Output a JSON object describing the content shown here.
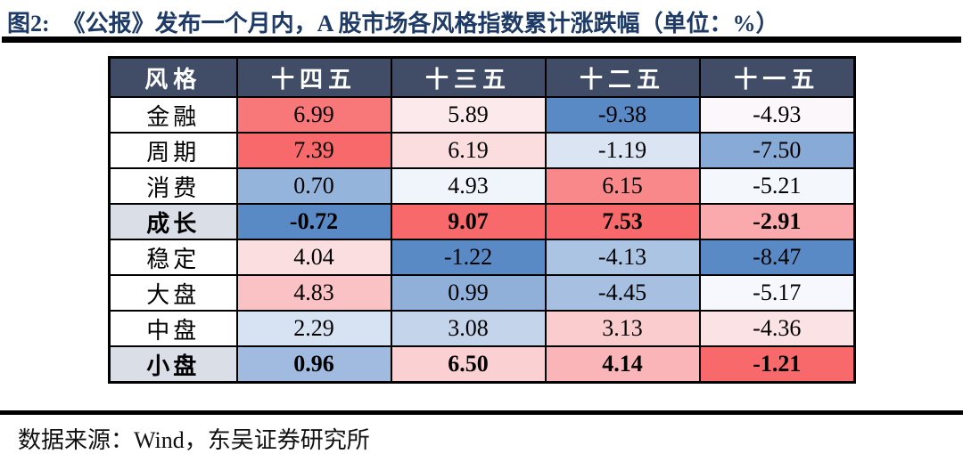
{
  "header": {
    "figure_label": "图2:",
    "title": "《公报》发布一个月内，A 股市场各风格指数累计涨跌幅（单位：%）",
    "title_color": "#1E3A66"
  },
  "table": {
    "columns": [
      "风格",
      "十四五",
      "十三五",
      "十二五",
      "十一五"
    ],
    "header_bg": "#414D66",
    "bold_label_bg": "#D9DEE7",
    "scale": {
      "min_color": "#5A8AC6",
      "mid_color": "#FCFCFF",
      "max_color": "#F8696B",
      "rule": "column-wise: red = column max, white = column median, blue = column min"
    },
    "rows": [
      {
        "label": "金融",
        "bold": false,
        "values": [
          "6.99",
          "5.89",
          "-9.38",
          "-4.93"
        ],
        "colors": [
          "#F87779",
          "#FBE9EC",
          "#5A8AC6",
          "#FCF7FA"
        ]
      },
      {
        "label": "周期",
        "bold": false,
        "values": [
          "7.39",
          "6.19",
          "-1.19",
          "-7.50"
        ],
        "colors": [
          "#F8696B",
          "#FBDDDF",
          "#DAE4F3",
          "#88AAD6"
        ]
      },
      {
        "label": "消费",
        "bold": false,
        "values": [
          "0.70",
          "4.93",
          "6.15",
          "-5.21"
        ],
        "colors": [
          "#95B4DB",
          "#F0F4FB",
          "#F9888A",
          "#F4F7FC"
        ]
      },
      {
        "label": "成长",
        "bold": true,
        "values": [
          "-0.72",
          "9.07",
          "7.53",
          "-2.91"
        ],
        "colors": [
          "#5A8AC6",
          "#F8696B",
          "#F8696B",
          "#FAAAAD"
        ]
      },
      {
        "label": "稳定",
        "bold": false,
        "values": [
          "4.04",
          "-1.22",
          "-4.13",
          "-8.47"
        ],
        "colors": [
          "#FBDEE0",
          "#5A8AC6",
          "#ACC4E3",
          "#5A8AC6"
        ]
      },
      {
        "label": "大盘",
        "bold": false,
        "values": [
          "4.83",
          "0.99",
          "-4.45",
          "-5.17"
        ],
        "colors": [
          "#FAC2C5",
          "#90B0D9",
          "#A7C0E1",
          "#F6F8FD"
        ]
      },
      {
        "label": "中盘",
        "bold": false,
        "values": [
          "2.29",
          "3.08",
          "3.13",
          "-4.36"
        ],
        "colors": [
          "#D7E2F2",
          "#C3D4EB",
          "#FBCCCE",
          "#FBE2E4"
        ]
      },
      {
        "label": "小盘",
        "bold": true,
        "values": [
          "0.96",
          "6.50",
          "4.14",
          "-1.21"
        ],
        "colors": [
          "#A0BBDF",
          "#FBD0D3",
          "#FAB5B8",
          "#F8696B"
        ]
      }
    ]
  },
  "footer": {
    "source_text": "数据来源：Wind，东吴证券研究所"
  },
  "chart_data": {
    "type": "table",
    "title": "图2: 《公报》发布一个月内，A 股市场各风格指数累计涨跌幅（单位：%）",
    "columns": [
      "风格",
      "十四五",
      "十三五",
      "十二五",
      "十一五"
    ],
    "rows": [
      {
        "风格": "金融",
        "十四五": 6.99,
        "十三五": 5.89,
        "十二五": -9.38,
        "十一五": -4.93
      },
      {
        "风格": "周期",
        "十四五": 7.39,
        "十三五": 6.19,
        "十二五": -1.19,
        "十一五": -7.5
      },
      {
        "风格": "消费",
        "十四五": 0.7,
        "十三五": 4.93,
        "十二五": 6.15,
        "十一五": -5.21
      },
      {
        "风格": "成长",
        "十四五": -0.72,
        "十三五": 9.07,
        "十二五": 7.53,
        "十一五": -2.91
      },
      {
        "风格": "稳定",
        "十四五": 4.04,
        "十三五": -1.22,
        "十二五": -4.13,
        "十一五": -8.47
      },
      {
        "风格": "大盘",
        "十四五": 4.83,
        "十三五": 0.99,
        "十二五": -4.45,
        "十一五": -5.17
      },
      {
        "风格": "中盘",
        "十四五": 2.29,
        "十三五": 3.08,
        "十二五": 3.13,
        "十一五": -4.36
      },
      {
        "风格": "小盘",
        "十四五": 0.96,
        "十三五": 6.5,
        "十二五": 4.14,
        "十一五": -1.21
      }
    ],
    "source": "数据来源：Wind，东吴证券研究所",
    "color_coding": "column-wise 3-color scale: red #F8696B at column max, white #FCFCFF at column median, blue #5A8AC6 at column min",
    "bold_rows": [
      "成长",
      "小盘"
    ]
  }
}
